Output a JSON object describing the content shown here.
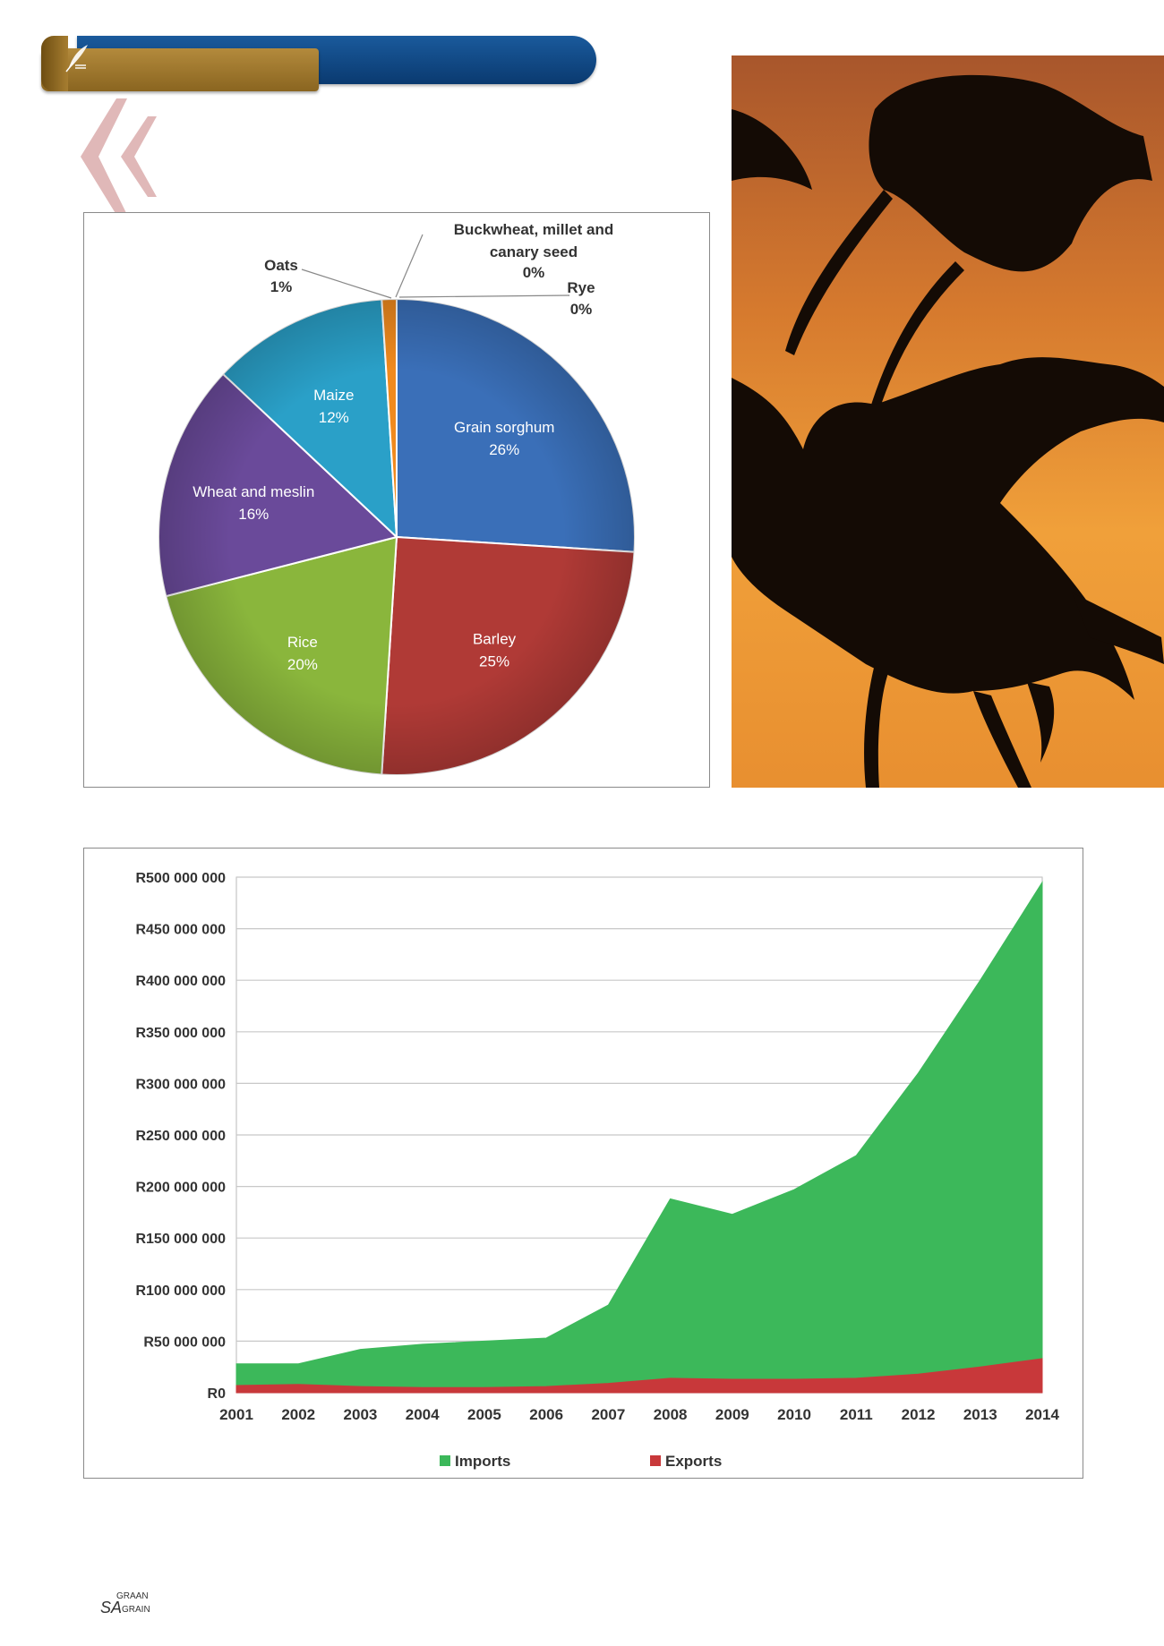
{
  "pie_chart": {
    "type": "pie",
    "slices": [
      {
        "label": "Grain sorghum",
        "pct_label": "26%",
        "value": 26,
        "color": "#3a6fb8"
      },
      {
        "label": "Barley",
        "pct_label": "25%",
        "value": 25,
        "color": "#b03a36"
      },
      {
        "label": "Rice",
        "pct_label": "20%",
        "value": 20,
        "color": "#8ab63c"
      },
      {
        "label": "Wheat and meslin",
        "pct_label": "16%",
        "value": 16,
        "color": "#6a4a9a"
      },
      {
        "label": "Maize",
        "pct_label": "12%",
        "value": 12,
        "color": "#2aa0c8"
      },
      {
        "label": "Oats",
        "pct_label": "1%",
        "value": 1,
        "color": "#f08a1e"
      },
      {
        "label": "Buckwheat, millet and canary seed",
        "pct_label": "0%",
        "value": 0,
        "color": "#8a8a8a"
      },
      {
        "label": "Rye",
        "pct_label": "0%",
        "value": 0,
        "color": "#8a8a8a"
      }
    ],
    "callouts": {
      "oats": {
        "name": "Oats",
        "pct": "1%"
      },
      "buckwheat": {
        "line1": "Buckwheat, millet and",
        "line2": "canary seed",
        "pct": "0%"
      },
      "rye": {
        "name": "Rye",
        "pct": "0%"
      }
    }
  },
  "chart_data": {
    "type": "area",
    "categories": [
      "2001",
      "2002",
      "2003",
      "2004",
      "2005",
      "2006",
      "2007",
      "2008",
      "2009",
      "2010",
      "2011",
      "2012",
      "2013",
      "2014"
    ],
    "series": [
      {
        "name": "Imports",
        "color": "#3cb85a",
        "values": [
          28000000,
          28000000,
          42000000,
          47000000,
          50000000,
          53000000,
          85000000,
          188000000,
          173000000,
          197000000,
          230000000,
          310000000,
          400000000,
          495000000
        ]
      },
      {
        "name": "Exports",
        "color": "#c8383a",
        "values": [
          7000000,
          8000000,
          6000000,
          5000000,
          5000000,
          6000000,
          9000000,
          14000000,
          13000000,
          13000000,
          14000000,
          18000000,
          25000000,
          33000000
        ]
      }
    ],
    "ylim": [
      0,
      500000000
    ],
    "yticks": [
      "R0",
      "R50 000 000",
      "R100 000 000",
      "R150 000 000",
      "R200 000 000",
      "R250 000 000",
      "R300 000 000",
      "R350 000 000",
      "R400 000 000",
      "R450 000 000",
      "R500 000 000"
    ],
    "legend": [
      {
        "name": "Imports",
        "color": "#3cb85a"
      },
      {
        "name": "Exports",
        "color": "#c8383a"
      }
    ],
    "legend_position": "bottom",
    "grid": true
  },
  "footer": {
    "line1": "GRAAN",
    "line2": "SA",
    "line3": "GRAIN"
  }
}
